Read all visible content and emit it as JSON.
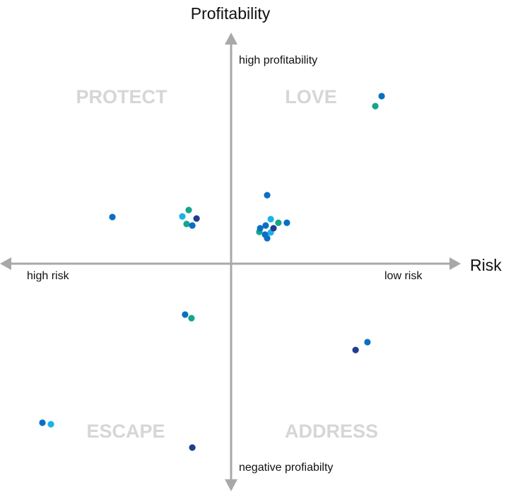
{
  "chart_data": {
    "type": "scatter",
    "title": "",
    "ylabel": "Profitability",
    "xlabel": "Risk",
    "x_end_labels": {
      "left": "high risk",
      "right": "low risk"
    },
    "y_end_labels": {
      "top": "high profitability",
      "bottom": "negative profiabilty"
    },
    "quadrants": {
      "top_left": "PROTECT",
      "top_right": "LOVE",
      "bottom_left": "ESCAPE",
      "bottom_right": "ADDRESS"
    },
    "xlim": [
      -105,
      105
    ],
    "ylim": [
      -108,
      108
    ],
    "grid": false,
    "colors": {
      "blue": "#0a6fc4",
      "green": "#13a68a",
      "lightblue": "#1ab2e8",
      "navy": "#213d8c",
      "axis": "#a8a8a8"
    },
    "points": [
      {
        "x": -20,
        "y": 25.3,
        "c": "green"
      },
      {
        "x": -23,
        "y": 22.3,
        "c": "lightblue"
      },
      {
        "x": -16.3,
        "y": 21.3,
        "c": "navy"
      },
      {
        "x": -21,
        "y": 18.7,
        "c": "green"
      },
      {
        "x": -18.3,
        "y": 18,
        "c": "blue"
      },
      {
        "x": 17,
        "y": 32.3,
        "c": "blue"
      },
      {
        "x": 18.7,
        "y": 21,
        "c": "lightblue"
      },
      {
        "x": 22.3,
        "y": 19.3,
        "c": "green"
      },
      {
        "x": 26.3,
        "y": 19.3,
        "c": "blue"
      },
      {
        "x": 13.3,
        "y": 15,
        "c": "green"
      },
      {
        "x": 13.7,
        "y": 16.7,
        "c": "blue"
      },
      {
        "x": 16.3,
        "y": 18,
        "c": "blue"
      },
      {
        "x": 18.7,
        "y": 14.7,
        "c": "lightblue"
      },
      {
        "x": 20,
        "y": 16.7,
        "c": "navy"
      },
      {
        "x": 16,
        "y": 13.7,
        "c": "blue"
      },
      {
        "x": 17,
        "y": 12,
        "c": "blue"
      },
      {
        "x": 71,
        "y": 79,
        "c": "blue"
      },
      {
        "x": 68,
        "y": 74.3,
        "c": "green"
      },
      {
        "x": -56,
        "y": 22,
        "c": "blue"
      },
      {
        "x": -21.7,
        "y": -24,
        "c": "blue"
      },
      {
        "x": -18.7,
        "y": -25.7,
        "c": "green"
      },
      {
        "x": 64.3,
        "y": -37,
        "c": "blue"
      },
      {
        "x": 58.7,
        "y": -40.7,
        "c": "navy"
      },
      {
        "x": -89,
        "y": -75,
        "c": "blue"
      },
      {
        "x": -85,
        "y": -75.7,
        "c": "lightblue"
      },
      {
        "x": -18.3,
        "y": -86.7,
        "c": "navy"
      }
    ]
  }
}
